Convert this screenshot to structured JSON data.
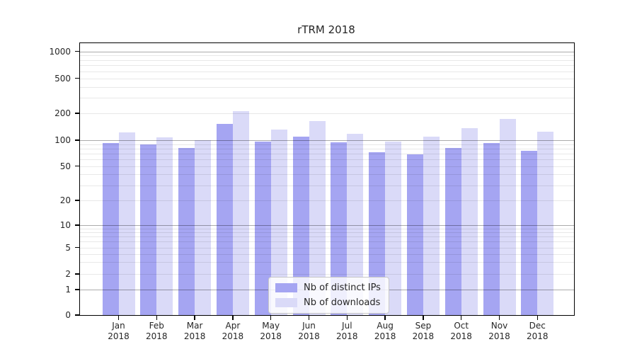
{
  "chart_data": {
    "type": "bar",
    "title": "rTRM 2018",
    "categories": [
      "Jan 2018",
      "Feb 2018",
      "Mar 2018",
      "Apr 2018",
      "May 2018",
      "Jun 2018",
      "Jul 2018",
      "Aug 2018",
      "Sep 2018",
      "Oct 2018",
      "Nov 2018",
      "Dec 2018"
    ],
    "series": [
      {
        "name": "Nb of distinct IPs",
        "color": "#a5a5f2",
        "values": [
          92,
          89,
          82,
          152,
          96,
          110,
          95,
          73,
          69,
          81,
          93,
          75
        ]
      },
      {
        "name": "Nb of downloads",
        "color": "#dadaf8",
        "values": [
          123,
          108,
          100,
          213,
          132,
          164,
          119,
          96,
          109,
          136,
          172,
          124
        ]
      }
    ],
    "yticks": [
      0,
      1,
      2,
      5,
      10,
      20,
      50,
      100,
      200,
      500,
      1000
    ],
    "scale": "symlog",
    "ylim": [
      0,
      1250
    ],
    "grid": "on",
    "legend_position": "lower center",
    "colors": {
      "axis": "#000000",
      "text": "#262626",
      "grid_minor": "#e8e8e8",
      "grid_major": "#ababab"
    }
  }
}
